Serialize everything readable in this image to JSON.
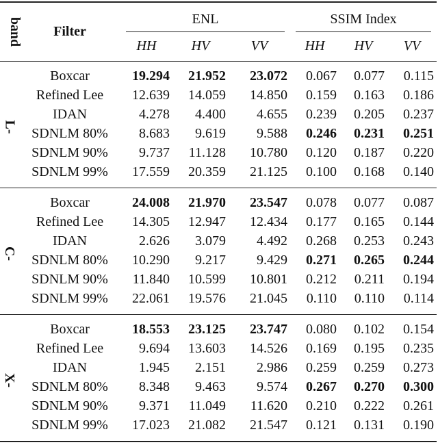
{
  "table": {
    "header": {
      "band": "band",
      "filter": "Filter",
      "groups": [
        {
          "label": "ENL",
          "columns": [
            "HH",
            "HV",
            "VV"
          ]
        },
        {
          "label": "SSIM Index",
          "columns": [
            "HH",
            "HV",
            "VV"
          ]
        }
      ]
    },
    "bands": [
      {
        "label": "L-",
        "rows": [
          {
            "filter": "Boxcar",
            "values": [
              "19.294",
              "21.952",
              "23.072",
              "0.067",
              "0.077",
              "0.115"
            ],
            "bold": [
              0,
              1,
              2
            ]
          },
          {
            "filter": "Refined Lee",
            "values": [
              "12.639",
              "14.059",
              "14.850",
              "0.159",
              "0.163",
              "0.186"
            ],
            "bold": []
          },
          {
            "filter": "IDAN",
            "values": [
              "4.278",
              "4.400",
              "4.655",
              "0.239",
              "0.205",
              "0.237"
            ],
            "bold": []
          },
          {
            "filter": "SDNLM 80%",
            "values": [
              "8.683",
              "9.619",
              "9.588",
              "0.246",
              "0.231",
              "0.251"
            ],
            "bold": [
              3,
              4,
              5
            ]
          },
          {
            "filter": "SDNLM 90%",
            "values": [
              "9.737",
              "11.128",
              "10.780",
              "0.120",
              "0.187",
              "0.220"
            ],
            "bold": []
          },
          {
            "filter": "SDNLM 99%",
            "values": [
              "17.559",
              "20.359",
              "21.125",
              "0.100",
              "0.168",
              "0.140"
            ],
            "bold": []
          }
        ]
      },
      {
        "label": "C-",
        "rows": [
          {
            "filter": "Boxcar",
            "values": [
              "24.008",
              "21.970",
              "23.547",
              "0.078",
              "0.077",
              "0.087"
            ],
            "bold": [
              0,
              1,
              2
            ]
          },
          {
            "filter": "Refined Lee",
            "values": [
              "14.305",
              "12.947",
              "12.434",
              "0.177",
              "0.165",
              "0.144"
            ],
            "bold": []
          },
          {
            "filter": "IDAN",
            "values": [
              "2.626",
              "3.079",
              "4.492",
              "0.268",
              "0.253",
              "0.243"
            ],
            "bold": []
          },
          {
            "filter": "SDNLM 80%",
            "values": [
              "10.290",
              "9.217",
              "9.429",
              "0.271",
              "0.265",
              "0.244"
            ],
            "bold": [
              3,
              4,
              5
            ]
          },
          {
            "filter": "SDNLM 90%",
            "values": [
              "11.840",
              "10.599",
              "10.801",
              "0.212",
              "0.211",
              "0.194"
            ],
            "bold": []
          },
          {
            "filter": "SDNLM 99%",
            "values": [
              "22.061",
              "19.576",
              "21.045",
              "0.110",
              "0.110",
              "0.114"
            ],
            "bold": []
          }
        ]
      },
      {
        "label": "X-",
        "rows": [
          {
            "filter": "Boxcar",
            "values": [
              "18.553",
              "23.125",
              "23.747",
              "0.080",
              "0.102",
              "0.154"
            ],
            "bold": [
              0,
              1,
              2
            ]
          },
          {
            "filter": "Refined Lee",
            "values": [
              "9.694",
              "13.603",
              "14.526",
              "0.169",
              "0.195",
              "0.235"
            ],
            "bold": []
          },
          {
            "filter": "IDAN",
            "values": [
              "1.945",
              "2.151",
              "2.986",
              "0.259",
              "0.259",
              "0.273"
            ],
            "bold": []
          },
          {
            "filter": "SDNLM 80%",
            "values": [
              "8.348",
              "9.463",
              "9.574",
              "0.267",
              "0.270",
              "0.300"
            ],
            "bold": [
              3,
              4,
              5
            ]
          },
          {
            "filter": "SDNLM 90%",
            "values": [
              "9.371",
              "11.049",
              "11.620",
              "0.210",
              "0.222",
              "0.261"
            ],
            "bold": []
          },
          {
            "filter": "SDNLM 99%",
            "values": [
              "17.023",
              "21.082",
              "21.547",
              "0.121",
              "0.131",
              "0.190"
            ],
            "bold": []
          }
        ]
      }
    ]
  }
}
